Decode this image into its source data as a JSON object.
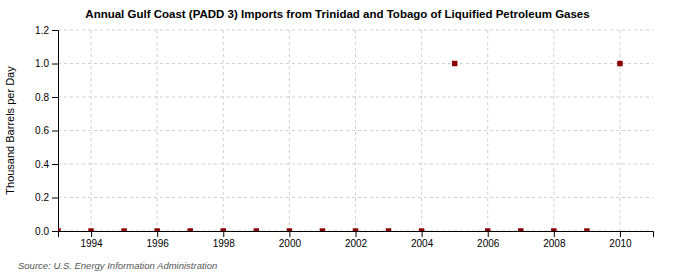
{
  "chart_data": {
    "type": "scatter",
    "title": "Annual Gulf Coast (PADD 3) Imports from Trinidad and Tobago of Liquified Petroleum Gases",
    "ylabel": "Thousand Barrels per Day",
    "annotations": [
      "Source: U.S. Energy Information Administration"
    ],
    "x": [
      1993,
      1994,
      1995,
      1996,
      1997,
      1998,
      1999,
      2000,
      2001,
      2002,
      2003,
      2004,
      2005,
      2006,
      2007,
      2008,
      2009,
      2010
    ],
    "values": [
      0,
      0,
      0,
      0,
      0,
      0,
      0,
      0,
      0,
      0,
      0,
      0,
      1.0,
      0,
      0,
      0,
      0,
      1.0
    ],
    "color": "#8b0000",
    "marker": "square",
    "xlim": [
      1993,
      2011
    ],
    "xticks": [
      1994,
      1996,
      1998,
      2000,
      2002,
      2004,
      2006,
      2008,
      2010
    ],
    "ylim": [
      0,
      1.2
    ],
    "yticks": [
      {
        "value": 0,
        "label": "0.0"
      },
      0.2,
      0.4,
      0.6,
      0.8,
      {
        "value": 1,
        "label": "1.0"
      },
      1.2
    ],
    "grid": true
  }
}
